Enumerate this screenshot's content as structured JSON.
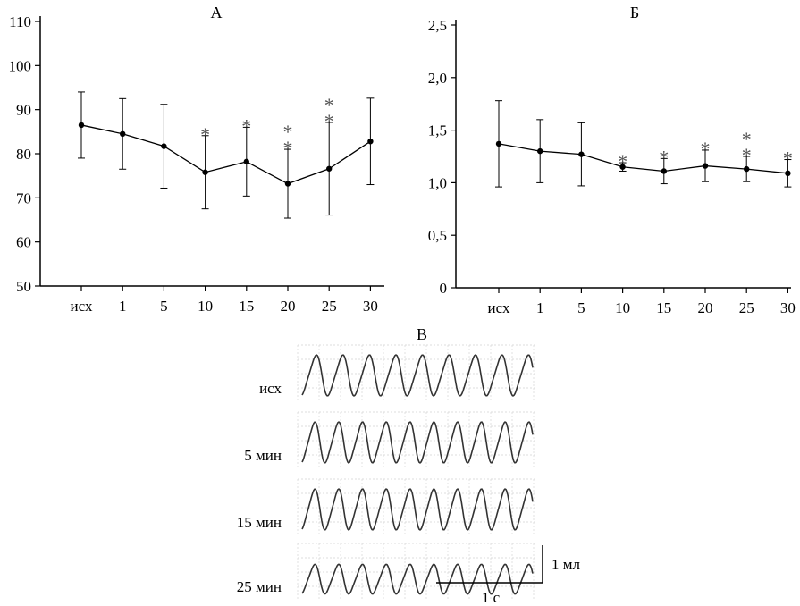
{
  "chart_data": [
    {
      "type": "line",
      "title": "А",
      "categories": [
        "исх",
        "1",
        "5",
        "10",
        "15",
        "20",
        "25",
        "30"
      ],
      "series": [
        {
          "values": [
            86.5,
            84.5,
            81.7,
            75.8,
            78.2,
            73.2,
            76.6,
            82.8
          ],
          "error": [
            7.5,
            8.0,
            9.5,
            8.3,
            7.8,
            7.8,
            10.5,
            9.8
          ]
        }
      ],
      "significance": [
        "",
        "",
        "",
        "*",
        "*",
        "**",
        "**",
        ""
      ],
      "ylim": [
        50,
        110
      ],
      "yticks": [
        "50",
        "60",
        "70",
        "80",
        "90",
        "100",
        "110"
      ],
      "xlabel": "",
      "ylabel": ""
    },
    {
      "type": "line",
      "title": "Б",
      "categories": [
        "исх",
        "1",
        "5",
        "10",
        "15",
        "20",
        "25",
        "30"
      ],
      "series": [
        {
          "values": [
            1.37,
            1.3,
            1.27,
            1.15,
            1.11,
            1.16,
            1.13,
            1.09
          ],
          "error": [
            0.41,
            0.3,
            0.3,
            0.04,
            0.12,
            0.15,
            0.12,
            0.13
          ]
        }
      ],
      "significance": [
        "",
        "",
        "",
        "*",
        "*",
        "*",
        "**",
        "*"
      ],
      "ylim": [
        0,
        2.5
      ],
      "yticks": [
        "0",
        "0,5",
        "1,0",
        "1,5",
        "2,0",
        "2,5"
      ],
      "xlabel": "",
      "ylabel": ""
    }
  ],
  "traces": {
    "title": "В",
    "rows": [
      {
        "label": "исх",
        "peaks": 9
      },
      {
        "label": "5 мин",
        "peaks": 10
      },
      {
        "label": "15 мин",
        "peaks": 10
      },
      {
        "label": "25 мин",
        "peaks": 10
      }
    ],
    "scale_volume": "1 мл",
    "scale_time": "1 с"
  }
}
